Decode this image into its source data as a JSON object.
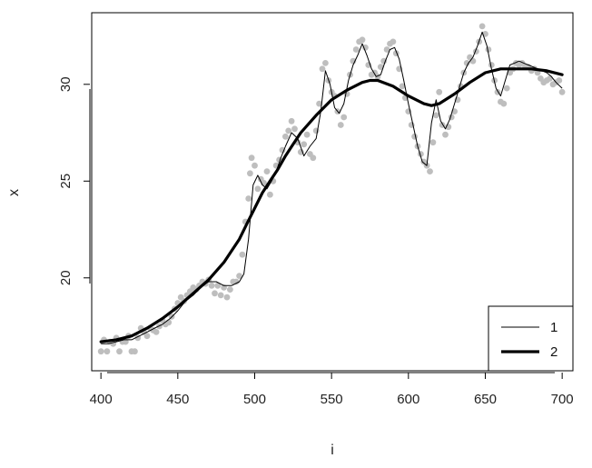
{
  "chart_data": {
    "type": "line",
    "title": "",
    "xlabel": "i",
    "ylabel": "x",
    "xlim": [
      394,
      707
    ],
    "ylim": [
      15.2,
      33.7
    ],
    "x_ticks": [
      400,
      450,
      500,
      550,
      600,
      650,
      700
    ],
    "x_tick_labels": [
      "400",
      "450",
      "500",
      "550",
      "600",
      "650",
      "700"
    ],
    "y_ticks": [
      20,
      25,
      30
    ],
    "y_tick_labels": [
      "20",
      "25",
      "30"
    ],
    "grid": false,
    "legend": {
      "position": "bottom-right",
      "entries": [
        {
          "label": "1",
          "color": "#000000",
          "line_width": "thin"
        },
        {
          "label": "2",
          "color": "#000000",
          "line_width": "thick"
        }
      ]
    },
    "points": {
      "color": "#bebebe",
      "x": [
        400,
        402,
        404,
        406,
        408,
        410,
        412,
        414,
        416,
        418,
        420,
        422,
        424,
        426,
        428,
        430,
        432,
        434,
        436,
        438,
        440,
        442,
        444,
        446,
        448,
        450,
        452,
        454,
        456,
        458,
        460,
        462,
        464,
        466,
        468,
        470,
        472,
        474,
        476,
        478,
        480,
        482,
        484,
        486,
        488,
        490,
        492,
        494,
        496,
        497,
        498,
        500,
        502,
        504,
        506,
        508,
        510,
        512,
        514,
        516,
        518,
        520,
        522,
        524,
        526,
        528,
        530,
        532,
        534,
        536,
        538,
        540,
        542,
        544,
        546,
        548,
        550,
        552,
        554,
        556,
        558,
        560,
        562,
        564,
        566,
        568,
        570,
        572,
        574,
        576,
        578,
        580,
        582,
        584,
        586,
        588,
        590,
        592,
        594,
        596,
        598,
        600,
        602,
        604,
        606,
        608,
        610,
        612,
        614,
        616,
        618,
        620,
        622,
        624,
        626,
        628,
        630,
        632,
        634,
        636,
        638,
        640,
        642,
        644,
        646,
        648,
        650,
        652,
        654,
        656,
        658,
        660,
        662,
        664,
        666,
        668,
        670,
        672,
        674,
        676,
        678,
        680,
        682,
        684,
        686,
        688,
        690,
        692,
        694,
        696,
        698,
        700
      ],
      "y": [
        16.2,
        16.8,
        16.2,
        16.7,
        16.6,
        16.9,
        16.2,
        16.7,
        16.7,
        17.0,
        16.2,
        16.2,
        16.9,
        17.4,
        17.2,
        17.0,
        17.4,
        17.3,
        17.2,
        17.5,
        17.8,
        17.6,
        17.7,
        18.0,
        18.4,
        18.7,
        19.0,
        18.8,
        19.1,
        19.3,
        19.5,
        19.4,
        19.6,
        19.8,
        19.7,
        19.9,
        19.6,
        19.2,
        19.6,
        19.1,
        19.5,
        19.0,
        19.4,
        19.8,
        19.8,
        20.1,
        21.2,
        22.9,
        24.1,
        25.4,
        26.2,
        25.8,
        24.6,
        25.1,
        24.9,
        25.5,
        24.3,
        25.0,
        25.8,
        26.1,
        26.6,
        27.3,
        27.6,
        28.1,
        27.7,
        27.0,
        26.5,
        26.9,
        27.4,
        26.4,
        26.2,
        27.6,
        29.0,
        30.8,
        31.1,
        30.2,
        29.6,
        29.4,
        28.6,
        27.9,
        28.3,
        29.5,
        30.5,
        31.2,
        31.8,
        32.2,
        32.3,
        31.9,
        31.0,
        30.5,
        30.6,
        30.4,
        30.9,
        31.2,
        31.8,
        32.1,
        32.2,
        31.6,
        30.8,
        29.9,
        29.3,
        28.6,
        27.9,
        27.3,
        26.8,
        26.4,
        26.0,
        25.8,
        25.5,
        27.0,
        28.4,
        29.6,
        27.9,
        27.4,
        27.8,
        28.3,
        28.6,
        29.2,
        29.9,
        30.6,
        31.1,
        31.4,
        31.2,
        31.7,
        32.2,
        33.0,
        32.6,
        31.8,
        31.0,
        30.2,
        29.6,
        29.1,
        29.0,
        29.8,
        30.6,
        30.8,
        31.1,
        31.0,
        31.1,
        30.9,
        30.9,
        30.7,
        30.8,
        30.6,
        30.3,
        30.1,
        30.2,
        30.3,
        30.0,
        30.1,
        30.2,
        29.6
      ]
    },
    "series": [
      {
        "name": "1",
        "x": [
          400,
          405,
          410,
          415,
          420,
          425,
          430,
          435,
          440,
          445,
          450,
          455,
          460,
          465,
          470,
          475,
          480,
          485,
          490,
          493,
          496,
          499,
          502,
          505,
          508,
          511,
          514,
          517,
          520,
          524,
          528,
          532,
          536,
          540,
          543,
          546,
          549,
          552,
          555,
          558,
          561,
          564,
          567,
          570,
          573,
          576,
          579,
          582,
          585,
          588,
          591,
          594,
          597,
          600,
          603,
          606,
          609,
          612,
          615,
          618,
          621,
          624,
          627,
          630,
          633,
          636,
          639,
          642,
          645,
          648,
          651,
          654,
          657,
          660,
          663,
          666,
          669,
          672,
          675,
          678,
          681,
          684,
          687,
          690,
          693,
          696,
          700
        ],
        "y": [
          16.6,
          16.6,
          16.7,
          16.8,
          16.8,
          17.0,
          17.2,
          17.4,
          17.6,
          17.9,
          18.3,
          18.8,
          19.1,
          19.5,
          19.8,
          19.8,
          19.6,
          19.6,
          19.8,
          20.2,
          22.0,
          24.8,
          25.3,
          24.8,
          24.6,
          25.0,
          25.5,
          26.2,
          26.8,
          27.5,
          27.2,
          26.3,
          26.8,
          27.2,
          28.6,
          30.7,
          30.0,
          28.8,
          28.5,
          29.0,
          30.2,
          31.0,
          31.5,
          32.1,
          31.5,
          30.8,
          30.4,
          30.5,
          31.2,
          31.8,
          31.9,
          31.3,
          30.2,
          29.0,
          27.9,
          26.8,
          26.0,
          25.8,
          28.0,
          29.2,
          28.1,
          27.7,
          28.2,
          29.0,
          29.8,
          30.6,
          31.1,
          31.4,
          32.0,
          32.7,
          32.0,
          30.8,
          29.8,
          29.4,
          30.2,
          31.0,
          31.1,
          31.2,
          31.1,
          31.0,
          30.9,
          30.8,
          30.7,
          30.6,
          30.4,
          30.1,
          29.8
        ]
      },
      {
        "name": "2",
        "x": [
          400,
          410,
          420,
          430,
          440,
          450,
          460,
          470,
          480,
          490,
          495,
          500,
          505,
          510,
          515,
          520,
          525,
          530,
          540,
          550,
          560,
          570,
          575,
          580,
          590,
          600,
          610,
          615,
          620,
          630,
          640,
          650,
          660,
          670,
          680,
          690,
          700
        ],
        "y": [
          16.7,
          16.8,
          17.0,
          17.4,
          17.9,
          18.5,
          19.2,
          19.9,
          20.8,
          22.0,
          22.8,
          23.6,
          24.4,
          25.0,
          25.6,
          26.3,
          26.9,
          27.5,
          28.4,
          29.2,
          29.7,
          30.1,
          30.2,
          30.2,
          29.9,
          29.4,
          29.0,
          28.9,
          29.0,
          29.5,
          30.1,
          30.6,
          30.8,
          30.8,
          30.8,
          30.7,
          30.5
        ]
      }
    ]
  }
}
